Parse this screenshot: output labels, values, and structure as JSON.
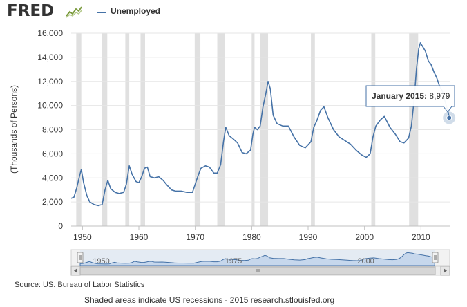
{
  "header": {
    "logo": "FRED",
    "logo_icon": "graph-icon",
    "legend_label": "Unemployed"
  },
  "tooltip": {
    "label": "January 2015:",
    "value": "8,979"
  },
  "source": "Source: US. Bureau of Labor Statistics",
  "footer": "Shaded areas indicate US recessions - 2015 research.stlouisfed.org",
  "colors": {
    "series": "#4572a7",
    "recession": "#e0e0e0",
    "navigator_fill": "#c6d7ec",
    "navigator_line": "#4572a7",
    "axis": "#333333",
    "grid": "#e6e6e6"
  },
  "chart_data": {
    "type": "line",
    "title": "",
    "xlabel": "",
    "ylabel": "(Thousands of Persons)",
    "ylim": [
      0,
      16000
    ],
    "xlim": [
      1948,
      2015.1
    ],
    "y_ticks": [
      0,
      2000,
      4000,
      6000,
      8000,
      10000,
      12000,
      14000,
      16000
    ],
    "y_tick_labels": [
      "0",
      "2,000",
      "4,000",
      "6,000",
      "8,000",
      "10,000",
      "12,000",
      "14,000",
      "16,000"
    ],
    "x_ticks": [
      1950,
      1960,
      1970,
      1980,
      1990,
      2000,
      2010
    ],
    "x_tick_labels": [
      "1950",
      "1960",
      "1970",
      "1980",
      "1990",
      "2000",
      "2010"
    ],
    "navigator_labels": [
      {
        "x": 1950,
        "label": "1950"
      },
      {
        "x": 1975,
        "label": "1975"
      },
      {
        "x": 2000,
        "label": "2000"
      }
    ],
    "grid": true,
    "recessions": [
      [
        1948.9,
        1949.8
      ],
      [
        1953.5,
        1954.4
      ],
      [
        1957.6,
        1958.3
      ],
      [
        1960.3,
        1961.1
      ],
      [
        1969.9,
        1970.9
      ],
      [
        1973.9,
        1975.2
      ],
      [
        1980.0,
        1980.5
      ],
      [
        1981.5,
        1982.9
      ],
      [
        1990.5,
        1991.2
      ],
      [
        2001.2,
        2001.9
      ],
      [
        2007.9,
        2009.5
      ]
    ],
    "series": [
      {
        "name": "Unemployed",
        "x": [
          1948.0,
          1948.5,
          1949.0,
          1949.5,
          1949.8,
          1950.2,
          1950.8,
          1951.3,
          1952.0,
          1952.8,
          1953.5,
          1954.0,
          1954.5,
          1955.0,
          1955.8,
          1956.5,
          1957.3,
          1957.8,
          1958.3,
          1958.8,
          1959.5,
          1960.0,
          1960.5,
          1961.0,
          1961.5,
          1962.0,
          1962.8,
          1963.5,
          1964.3,
          1965.0,
          1965.8,
          1966.5,
          1967.5,
          1968.5,
          1969.5,
          1970.0,
          1970.5,
          1971.0,
          1971.8,
          1972.5,
          1973.3,
          1973.9,
          1974.5,
          1975.0,
          1975.4,
          1976.0,
          1976.8,
          1977.5,
          1978.3,
          1979.0,
          1979.8,
          1980.2,
          1980.5,
          1981.0,
          1981.5,
          1982.0,
          1982.5,
          1982.9,
          1983.3,
          1983.8,
          1984.5,
          1985.5,
          1986.5,
          1987.5,
          1988.5,
          1989.5,
          1990.5,
          1991.0,
          1991.5,
          1992.2,
          1992.8,
          1993.5,
          1994.5,
          1995.5,
          1996.5,
          1997.5,
          1998.5,
          1999.5,
          2000.3,
          2001.0,
          2001.5,
          2002.0,
          2002.8,
          2003.5,
          2004.5,
          2005.5,
          2006.3,
          2007.0,
          2007.8,
          2008.3,
          2008.8,
          2009.2,
          2009.6,
          2009.9,
          2010.3,
          2010.8,
          2011.3,
          2011.8,
          2012.3,
          2012.8,
          2013.3,
          2013.8,
          2014.3,
          2014.8,
          2015.0
        ],
        "values": [
          2300,
          2400,
          3200,
          4200,
          4700,
          3600,
          2500,
          2000,
          1800,
          1700,
          1800,
          3000,
          3800,
          3100,
          2800,
          2700,
          2800,
          3500,
          5000,
          4300,
          3700,
          3600,
          4100,
          4800,
          4900,
          4100,
          4000,
          4100,
          3800,
          3400,
          3000,
          2900,
          2900,
          2800,
          2800,
          3500,
          4200,
          4800,
          5000,
          4900,
          4400,
          4400,
          5100,
          7000,
          8200,
          7500,
          7200,
          6900,
          6100,
          6000,
          6300,
          7600,
          8200,
          8000,
          8300,
          9900,
          11000,
          12000,
          11400,
          9200,
          8500,
          8300,
          8300,
          7400,
          6700,
          6500,
          7000,
          8200,
          8700,
          9600,
          9900,
          9000,
          8000,
          7400,
          7100,
          6800,
          6300,
          5900,
          5700,
          6000,
          7400,
          8300,
          8800,
          9100,
          8200,
          7600,
          7000,
          6900,
          7300,
          8300,
          10500,
          13000,
          14700,
          15200,
          14900,
          14500,
          13700,
          13400,
          12800,
          12300,
          11600,
          11200,
          10300,
          9500,
          8979
        ]
      }
    ],
    "tooltip_point": {
      "x": 2015.0,
      "y": 8979
    }
  }
}
